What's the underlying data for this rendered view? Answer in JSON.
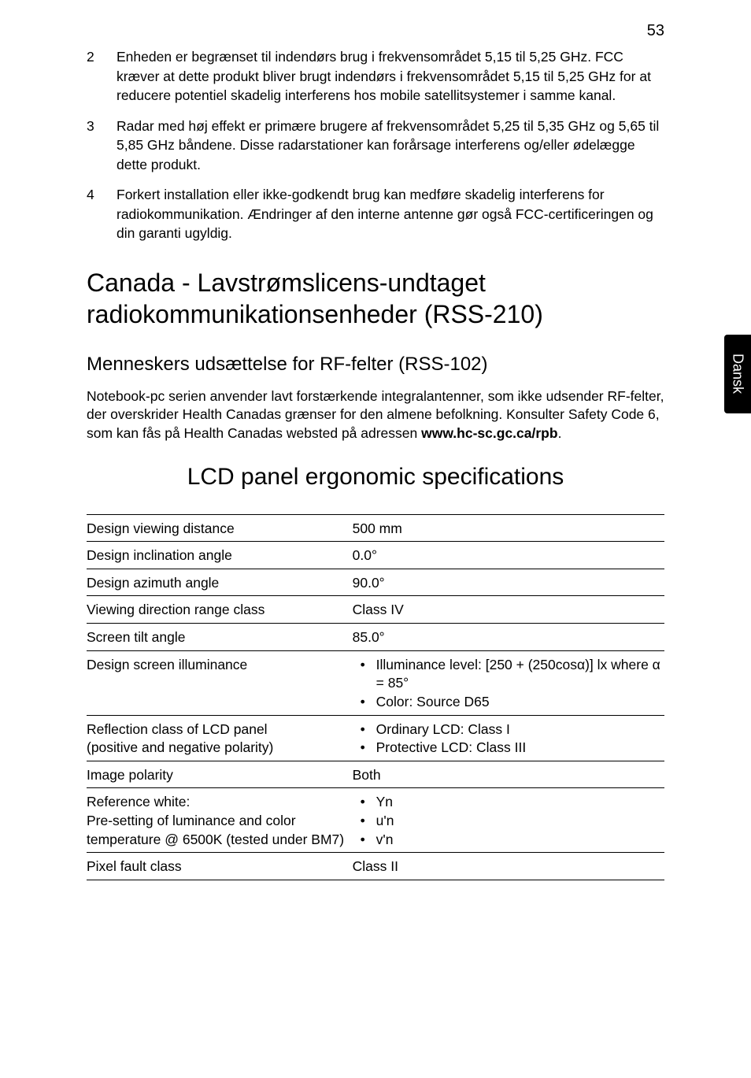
{
  "page_number": "53",
  "side_tab": "Dansk",
  "list_items": [
    {
      "num": "2",
      "text": "Enheden er begrænset til indendørs brug i frekvensområdet 5,15 til 5,25 GHz. FCC kræver at dette produkt bliver brugt indendørs i frekvensområdet 5,15 til 5,25 GHz for at reducere potentiel skadelig interferens hos mobile satellitsystemer i samme kanal."
    },
    {
      "num": "3",
      "text": "Radar med høj effekt er primære brugere af frekvensområdet 5,25 til 5,35 GHz og 5,65 til 5,85 GHz båndene. Disse radarstationer kan forårsage interferens og/eller ødelægge dette produkt."
    },
    {
      "num": "4",
      "text": "Forkert installation eller ikke-godkendt brug kan medføre skadelig interferens for radiokommunikation. Ændringer af den interne antenne gør også FCC-certificeringen og din garanti ugyldig."
    }
  ],
  "h1": "Canada - Lavstrømslicens-undtaget radiokommunikationsenheder (RSS-210)",
  "h2": "Menneskers udsættelse for RF-felter (RSS-102)",
  "paragraph_pre": "Notebook-pc serien anvender lavt forstærkende integralantenner, som ikke udsender RF-felter, der overskrider Health Canadas grænser for den almene befolkning. Konsulter Safety Code 6, som kan fås på Health Canadas websted på adressen ",
  "paragraph_bold": "www.hc-sc.gc.ca/rpb",
  "paragraph_post": ".",
  "centered_title": "LCD panel ergonomic specifications",
  "table": {
    "rows": [
      {
        "label": "Design viewing distance",
        "value": "500 mm"
      },
      {
        "label": "Design inclination angle",
        "value": "0.0°"
      },
      {
        "label": "Design azimuth angle",
        "value": "90.0°"
      },
      {
        "label": "Viewing direction range class",
        "value": "Class IV"
      },
      {
        "label": "Screen tilt angle",
        "value": "85.0°"
      },
      {
        "label": "Design screen illuminance",
        "bullets": [
          "Illuminance level: [250 + (250cosα)] lx where α = 85°",
          "Color: Source D65"
        ]
      },
      {
        "label_lines": [
          "Reflection class of LCD panel",
          "(positive and negative polarity)"
        ],
        "bullets": [
          "Ordinary LCD: Class I",
          "Protective LCD: Class III"
        ]
      },
      {
        "label": "Image polarity",
        "value": "Both"
      },
      {
        "label_lines": [
          "Reference white:",
          "Pre-setting of luminance and color temperature @ 6500K (tested under BM7)"
        ],
        "bullets": [
          "Yn",
          "u'n",
          "v'n"
        ]
      },
      {
        "label": "Pixel fault class",
        "value": "Class II"
      }
    ]
  }
}
